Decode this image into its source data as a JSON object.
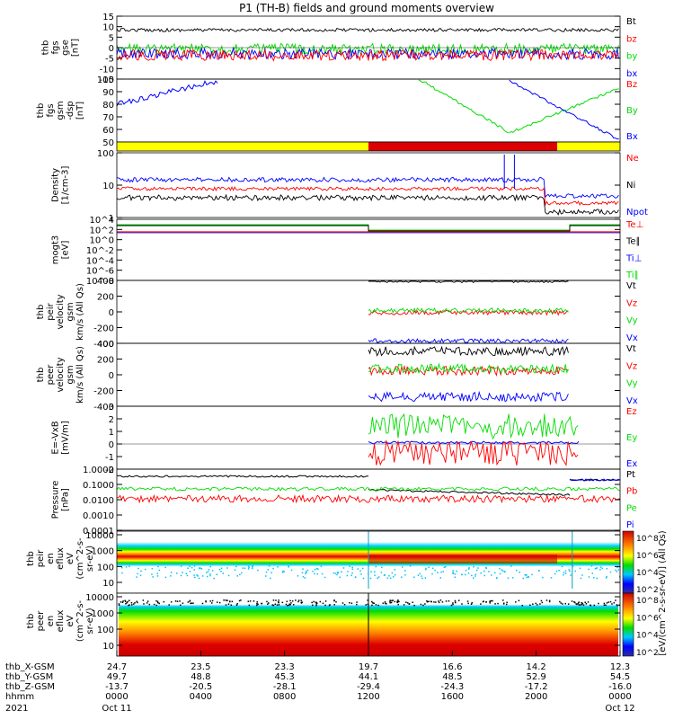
{
  "title": "P1 (TH-B) fields and ground moments overview",
  "footer": {
    "rows": [
      {
        "label": "thb_X-GSM",
        "values": [
          "24.7",
          "23.5",
          "23.3",
          "19.7",
          "16.6",
          "14.2",
          "12.3"
        ]
      },
      {
        "label": "thb_Y-GSM",
        "values": [
          "49.7",
          "48.8",
          "45.3",
          "44.1",
          "48.5",
          "52.9",
          "54.5"
        ]
      },
      {
        "label": "thb_Z-GSM",
        "values": [
          "-13.7",
          "-20.5",
          "-28.1",
          "-29.4",
          "-24.3",
          "-17.2",
          "-16.0"
        ]
      },
      {
        "label": "hhmm",
        "values": [
          "0000",
          "0400",
          "0800",
          "1200",
          "1600",
          "2000",
          "0000"
        ]
      }
    ],
    "year": "2021",
    "date_start": "Oct 11",
    "date_end": "Oct 12"
  },
  "colorbar": {
    "label": "[eV/(cm^2-s-sr-eV)] (All Qs)",
    "ticks1": [
      "10^8",
      "10^6",
      "10^4",
      "10^2"
    ],
    "ticks2": [
      "10^8",
      "10^6",
      "10^4",
      "10^2"
    ]
  },
  "chart_data": [
    {
      "type": "line",
      "panel": "fgs",
      "ylabel": [
        "thb",
        "fgs",
        "gse",
        "[nT]"
      ],
      "ylim": [
        -15,
        15
      ],
      "yticks": [
        "15",
        "10",
        "5",
        "0",
        "-5",
        "-10",
        "-15"
      ],
      "series": [
        {
          "name": "Bt",
          "color": "#000000",
          "level": 9
        },
        {
          "name": "bz",
          "color": "#ff0000",
          "level": -2
        },
        {
          "name": "by",
          "color": "#00dd00",
          "level": 0
        },
        {
          "name": "bx",
          "color": "#0000ff",
          "level": -3
        }
      ]
    },
    {
      "type": "line",
      "panel": "fgs-gsm",
      "ylabel": [
        "thb",
        "fgs",
        "gsm",
        "-dsp",
        "[nT]"
      ],
      "ylim": [
        45,
        100
      ],
      "yticks": [
        "100",
        "90",
        "80",
        "70",
        "60",
        "50"
      ],
      "series": [
        {
          "name": "Bz",
          "color": "#ff0000"
        },
        {
          "name": "By",
          "color": "#00dd00"
        },
        {
          "name": "Bx",
          "color": "#0000ff"
        }
      ]
    },
    {
      "type": "bar",
      "panel": "mode",
      "segments": [
        {
          "from": 0,
          "to": 0.5,
          "color": "#ffff00"
        },
        {
          "from": 0.5,
          "to": 0.875,
          "color": "#dd0000"
        },
        {
          "from": 0.875,
          "to": 1,
          "color": "#ffff00"
        }
      ]
    },
    {
      "type": "line",
      "panel": "density",
      "ylabel": [
        "Density",
        "[1/cm-3]"
      ],
      "scale": "log",
      "yticks": [
        "100",
        "10",
        "1"
      ],
      "series": [
        {
          "name": "Ne",
          "color": "#ff0000"
        },
        {
          "name": "Ni",
          "color": "#000000"
        },
        {
          "name": "Npot",
          "color": "#0000ff"
        }
      ]
    },
    {
      "type": "line",
      "panel": "temperature",
      "ylabel": [
        "mogt3",
        "[eV]"
      ],
      "scale": "log",
      "yticks": [
        "10^4",
        "10^2",
        "10^0",
        "10^-2",
        "10^-4",
        "10^-6",
        "10^-8"
      ],
      "series": [
        {
          "name": "Te⊥",
          "color": "#ff0000"
        },
        {
          "name": "Te∥",
          "color": "#000000"
        },
        {
          "name": "Ti⊥",
          "color": "#0000ff"
        },
        {
          "name": "Ti∥",
          "color": "#00dd00"
        }
      ]
    },
    {
      "type": "line",
      "panel": "peir-velocity",
      "ylabel": [
        "thb",
        "peir",
        "velocity",
        "gsm",
        "km/s (All Qs)"
      ],
      "ylim": [
        -400,
        400
      ],
      "yticks": [
        "400",
        "200",
        "0",
        "-200",
        "-400"
      ],
      "series": [
        {
          "name": "Vt",
          "color": "#000000",
          "level": 400
        },
        {
          "name": "Vz",
          "color": "#ff0000",
          "level": -10
        },
        {
          "name": "Vy",
          "color": "#00dd00",
          "level": 20
        },
        {
          "name": "Vx",
          "color": "#0000ff",
          "level": -370
        }
      ]
    },
    {
      "type": "line",
      "panel": "peer-velocity",
      "ylabel": [
        "thb",
        "peer",
        "velocity",
        "gsm",
        "km/s (All Qs)"
      ],
      "ylim": [
        -400,
        400
      ],
      "yticks": [
        "400",
        "200",
        "0",
        "-200",
        "-400"
      ],
      "series": [
        {
          "name": "Vt",
          "color": "#000000",
          "level": 300
        },
        {
          "name": "Vz",
          "color": "#ff0000",
          "level": 50
        },
        {
          "name": "Vy",
          "color": "#00dd00",
          "level": 80
        },
        {
          "name": "Vx",
          "color": "#0000ff",
          "level": -280
        }
      ]
    },
    {
      "type": "line",
      "panel": "efield",
      "ylabel": [
        "E=-VxB",
        "[mV/m]"
      ],
      "ylim": [
        -2,
        3
      ],
      "yticks": [
        "3",
        "2",
        "1",
        "0",
        "-1",
        "-2"
      ],
      "series": [
        {
          "name": "Ez",
          "color": "#ff0000"
        },
        {
          "name": "Ey",
          "color": "#00dd00"
        },
        {
          "name": "Ex",
          "color": "#0000ff"
        }
      ]
    },
    {
      "type": "line",
      "panel": "pressure",
      "ylabel": [
        "Pressure",
        "[nPa]"
      ],
      "scale": "log",
      "yticks": [
        "1.0000",
        "0.1000",
        "0.0100",
        "0.0010",
        "0.0001"
      ],
      "series": [
        {
          "name": "Pt",
          "color": "#000000"
        },
        {
          "name": "Pb",
          "color": "#ff0000"
        },
        {
          "name": "Pe",
          "color": "#00dd00"
        },
        {
          "name": "Pi",
          "color": "#0000ff"
        }
      ]
    },
    {
      "type": "heatmap",
      "panel": "peir-spectrogram",
      "ylabel": [
        "thb",
        "peir",
        "en",
        "eflux",
        "eV",
        "(cm^2-s-",
        "sr-eV)"
      ],
      "scale": "log",
      "yticks": [
        "10000",
        "1000",
        "100",
        "10"
      ]
    },
    {
      "type": "heatmap",
      "panel": "peer-spectrogram",
      "ylabel": [
        "thb",
        "peer",
        "en",
        "eflux",
        "eV",
        "(cm^2-s-",
        "sr-eV)"
      ],
      "scale": "log",
      "yticks": [
        "10000",
        "1000",
        "100",
        "10"
      ]
    }
  ]
}
